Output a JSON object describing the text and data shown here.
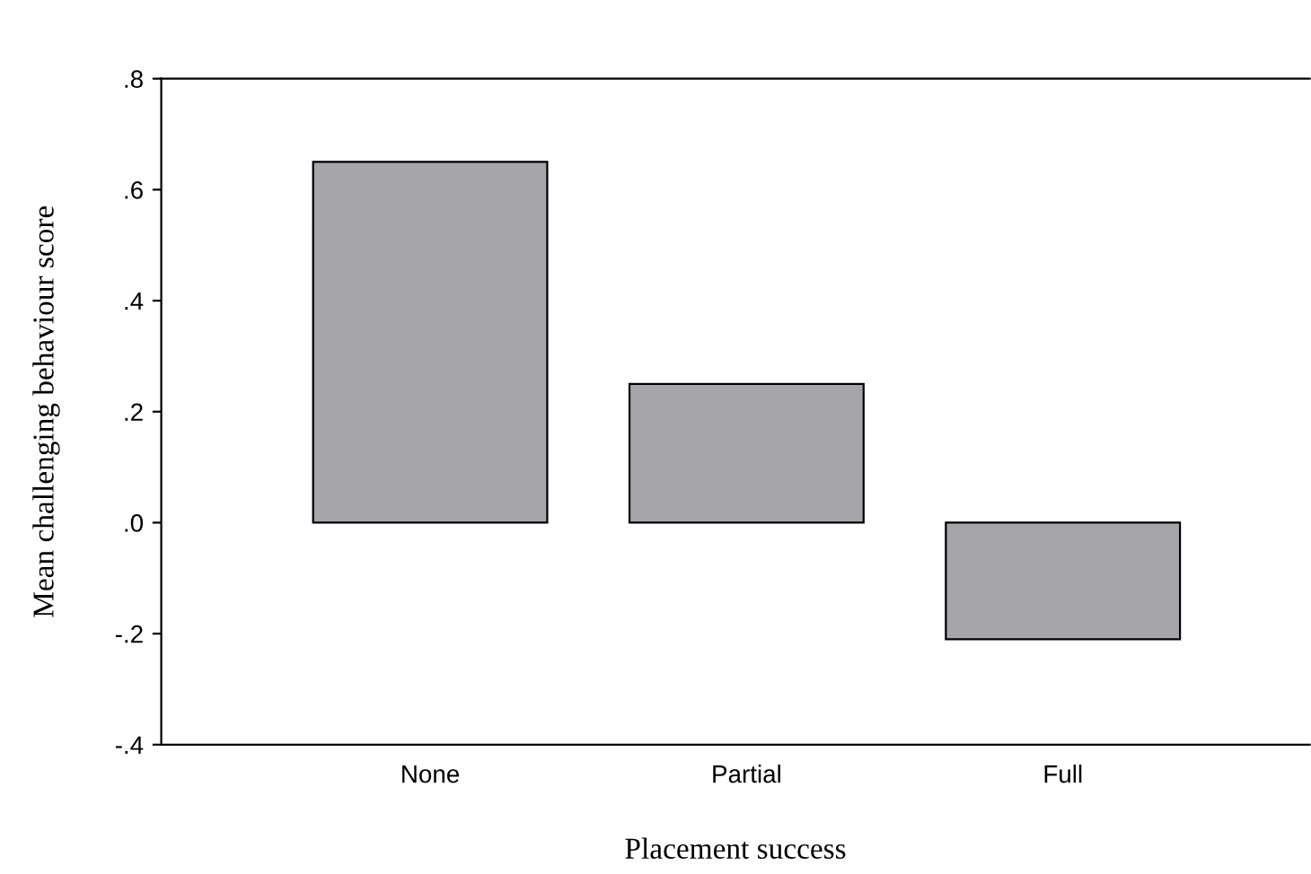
{
  "chart_data": {
    "type": "bar",
    "xlabel": "Placement success",
    "ylabel": "Mean challenging behaviour score",
    "categories": [
      "None",
      "Partial",
      "Full"
    ],
    "values": [
      0.65,
      0.25,
      -0.21
    ],
    "color": "#a6a6aa",
    "ylim": [
      -0.4,
      0.8
    ],
    "yticks": [
      {
        "value": -0.4,
        "label": "-.4"
      },
      {
        "value": -0.2,
        "label": "-.2"
      },
      {
        "value": 0.0,
        "label": ".0"
      },
      {
        "value": 0.2,
        "label": ".2"
      },
      {
        "value": 0.4,
        "label": ".4"
      },
      {
        "value": 0.6,
        "label": ".6"
      },
      {
        "value": 0.8,
        "label": ".8"
      }
    ],
    "grid": false,
    "legend": false
  }
}
